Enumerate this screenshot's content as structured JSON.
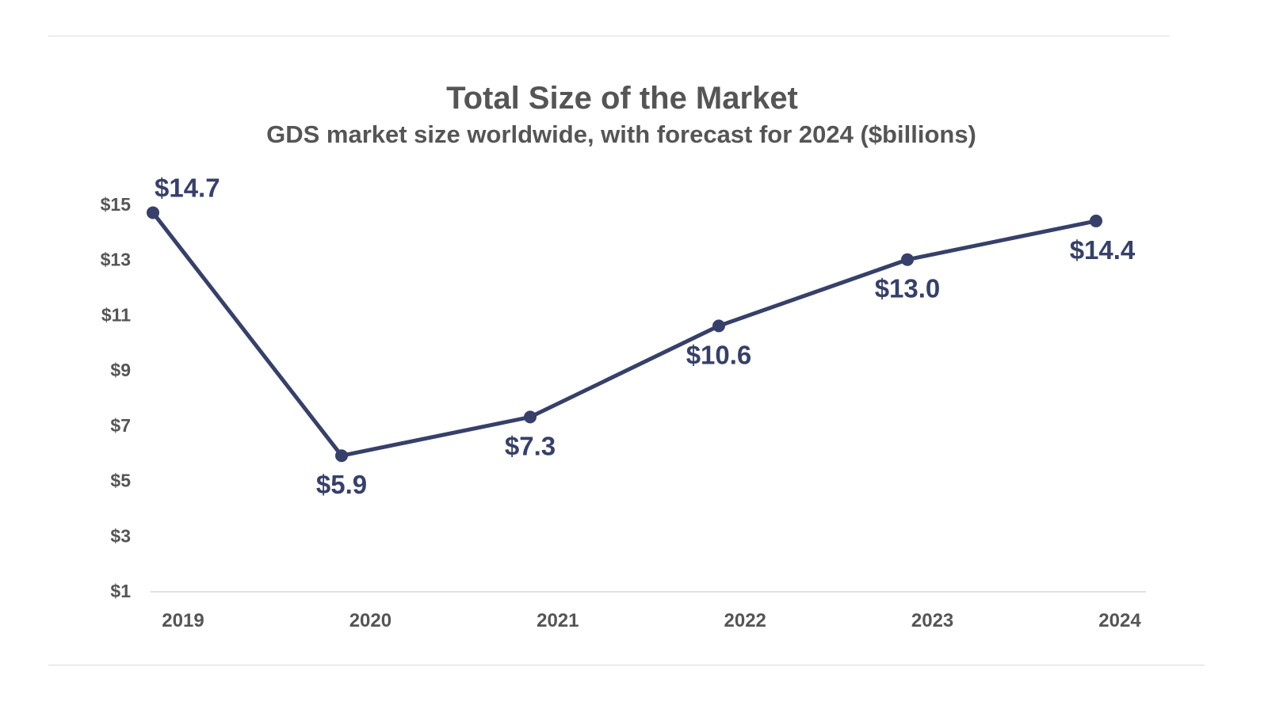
{
  "chart_data": {
    "type": "line",
    "title": "Total Size of the Market",
    "subtitle": "GDS market size worldwide, with forecast for 2024 ($billions)",
    "xlabel": "",
    "ylabel": "",
    "categories": [
      "2019",
      "2020",
      "2021",
      "2022",
      "2023",
      "2024"
    ],
    "series": [
      {
        "values": [
          14.7,
          5.9,
          7.3,
          10.6,
          13.0,
          14.4
        ],
        "color": "#36406a"
      }
    ],
    "data_labels": [
      "$14.7",
      "$5.9",
      "$7.3",
      "$10.6",
      "$13.0",
      "$14.4"
    ],
    "ylim": [
      1,
      15
    ],
    "yticks": [
      1,
      3,
      5,
      7,
      9,
      11,
      13,
      15
    ],
    "ytick_labels": [
      "$1",
      "$3",
      "$5",
      "$7",
      "$9",
      "$11",
      "$13",
      "$15"
    ],
    "grid": false,
    "legend": "none",
    "colors": {
      "line": "#36406a",
      "text": "#555555",
      "axis": "#e0e0e0"
    }
  }
}
